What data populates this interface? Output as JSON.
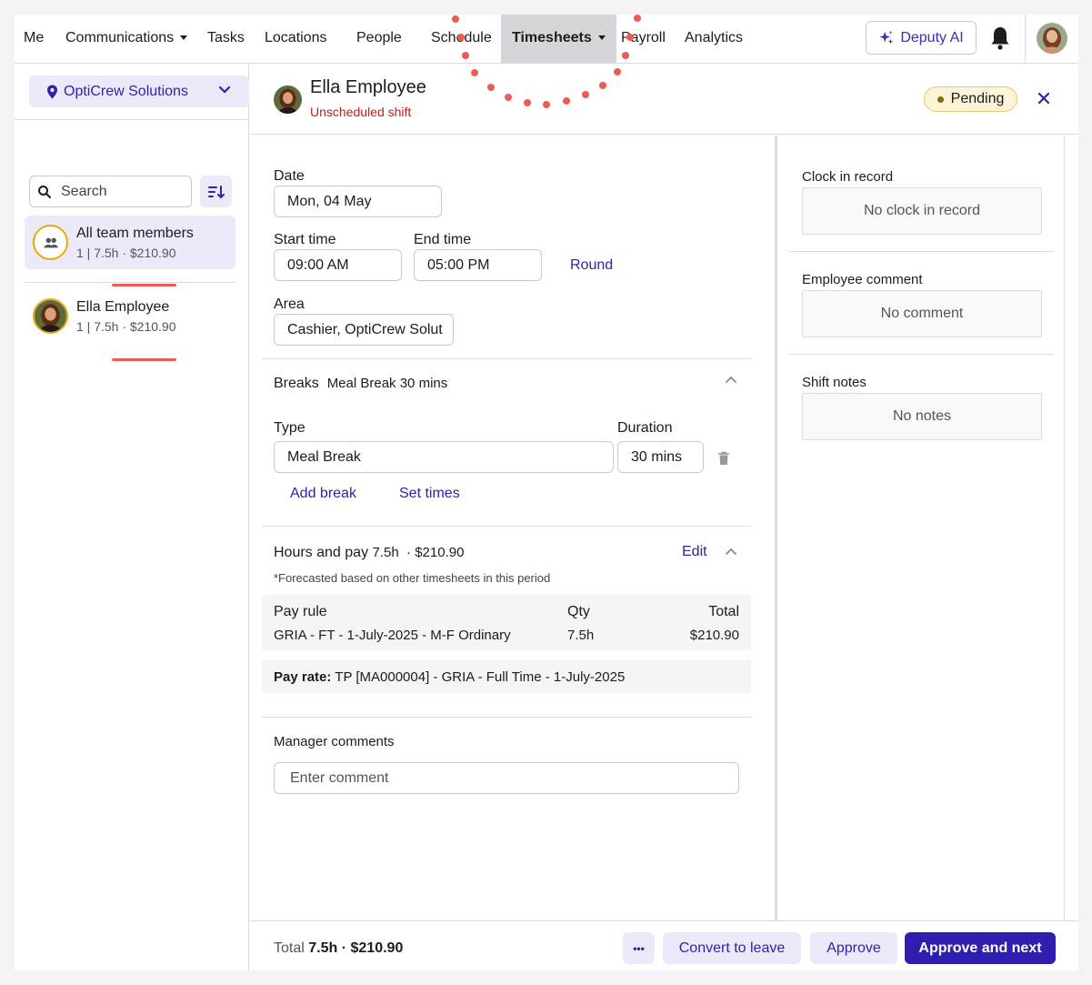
{
  "nav": {
    "items": [
      "Me",
      "Communications",
      "Tasks",
      "Locations",
      "People",
      "Schedule",
      "Timesheets",
      "Payroll",
      "Analytics"
    ],
    "ai_label": "Deputy AI"
  },
  "sidebar": {
    "location": "OptiCrew Solutions",
    "search_placeholder": "Search",
    "members": [
      {
        "name": "All team members",
        "summary": "1 | 7.5h · $210.90"
      },
      {
        "name": "Ella Employee",
        "summary": "1 | 7.5h · $210.90"
      }
    ]
  },
  "header": {
    "employee": "Ella Employee",
    "shift_type": "Unscheduled shift",
    "status": "Pending"
  },
  "form": {
    "date_label": "Date",
    "date_value": "Mon, 04 May",
    "start_label": "Start time",
    "start_value": "09:00 AM",
    "end_label": "End time",
    "end_value": "05:00 PM",
    "round_label": "Round",
    "area_label": "Area",
    "area_value": "Cashier, OptiCrew Solut",
    "breaks_title": "Breaks",
    "breaks_summary": "Meal Break 30 mins",
    "type_label": "Type",
    "type_value": "Meal Break",
    "duration_label": "Duration",
    "duration_value": "30 mins",
    "add_break": "Add break",
    "set_times": "Set times",
    "hours_title": "Hours and pay",
    "hours_summary": "7.5h  · $210.90",
    "edit_label": "Edit",
    "forecast_note": "*Forecasted based on other timesheets in this period",
    "pay_table": {
      "headers": [
        "Pay rule",
        "Qty",
        "Total"
      ],
      "row": [
        "GRIA - FT - 1-July-2025 - M-F Ordinary",
        "7.5h",
        "$210.90"
      ]
    },
    "pay_rate_label": "Pay rate:",
    "pay_rate_value": "TP [MA000004] - GRIA - Full Time - 1-July-2025",
    "manager_comments_label": "Manager comments",
    "comment_placeholder": "Enter comment"
  },
  "right": {
    "clock_label": "Clock in record",
    "clock_value": "No clock in record",
    "emp_comment_label": "Employee comment",
    "emp_comment_value": "No comment",
    "shift_notes_label": "Shift notes",
    "shift_notes_value": "No notes"
  },
  "footer": {
    "total_prefix": "Total",
    "total_hours": "7.5h",
    "total_sep": "·",
    "total_amount": "$210.90",
    "more_label": "•••",
    "convert_label": "Convert to leave",
    "approve_label": "Approve",
    "approve_next_label": "Approve and next"
  },
  "colors": {
    "accent": "#2f1fb0",
    "selected_bg": "#ebe9fa",
    "annotation": "#ef5a54",
    "pending_bg": "#fdf3d6"
  }
}
